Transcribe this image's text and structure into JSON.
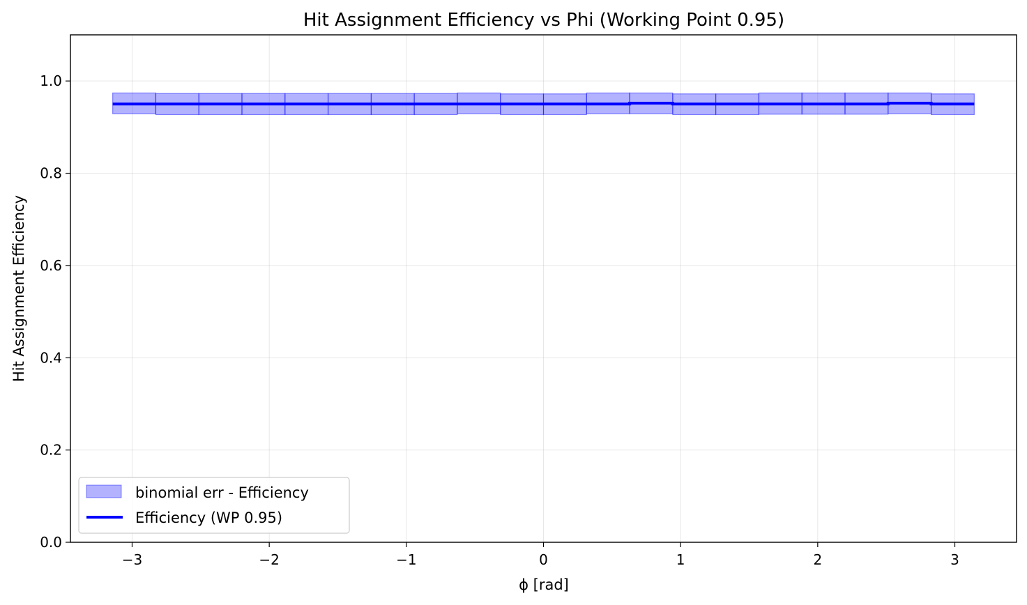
{
  "chart_data": {
    "type": "line",
    "title": "Hit Assignment Efficiency vs Phi (Working Point 0.95)",
    "xlabel": "ϕ [rad]",
    "ylabel": "Hit Assignment Efficiency",
    "xlim": [
      -3.45,
      3.45
    ],
    "ylim": [
      0.0,
      1.1
    ],
    "xticks": [
      -3,
      -2,
      -1,
      0,
      1,
      2,
      3
    ],
    "xtick_labels": [
      "−3",
      "−2",
      "−1",
      "0",
      "1",
      "2",
      "3"
    ],
    "yticks": [
      0.0,
      0.2,
      0.4,
      0.6,
      0.8,
      1.0
    ],
    "ytick_labels": [
      "0.0",
      "0.2",
      "0.4",
      "0.6",
      "0.8",
      "1.0"
    ],
    "grid": true,
    "legend_position": "lower-left",
    "bin_edges": [
      -3.1416,
      -2.8274,
      -2.5133,
      -2.1991,
      -1.885,
      -1.5708,
      -1.2566,
      -0.9425,
      -0.6283,
      -0.3142,
      0.0,
      0.3142,
      0.6283,
      0.9425,
      1.2566,
      1.5708,
      1.885,
      2.1991,
      2.5133,
      2.8274,
      3.1416
    ],
    "series": [
      {
        "name": "binomial err - Efficiency",
        "kind": "error-band",
        "color": "#0000ff",
        "upper": [
          0.974,
          0.973,
          0.973,
          0.973,
          0.973,
          0.973,
          0.973,
          0.973,
          0.974,
          0.972,
          0.972,
          0.974,
          0.974,
          0.972,
          0.972,
          0.974,
          0.974,
          0.974,
          0.974,
          0.972
        ],
        "lower": [
          0.929,
          0.927,
          0.927,
          0.927,
          0.927,
          0.927,
          0.927,
          0.927,
          0.929,
          0.927,
          0.927,
          0.929,
          0.929,
          0.927,
          0.927,
          0.928,
          0.928,
          0.928,
          0.929,
          0.927
        ]
      },
      {
        "name": "Efficiency (WP 0.95)",
        "kind": "step",
        "color": "#0000ff",
        "values": [
          0.95,
          0.95,
          0.95,
          0.95,
          0.95,
          0.95,
          0.95,
          0.95,
          0.95,
          0.95,
          0.95,
          0.95,
          0.952,
          0.95,
          0.95,
          0.95,
          0.95,
          0.95,
          0.952,
          0.95
        ]
      }
    ]
  }
}
